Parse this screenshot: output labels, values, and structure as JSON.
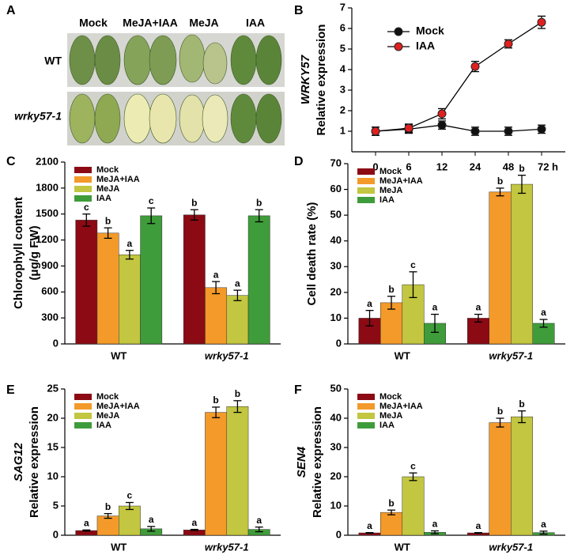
{
  "panel_a": {
    "letter": "A",
    "columns": [
      "Mock",
      "MeJA+IAA",
      "MeJA",
      "IAA"
    ],
    "rows": [
      "WT",
      "wrky57-1"
    ]
  },
  "chart_data": [
    {
      "type": "line",
      "letter": "B",
      "ylabel": [
        "WRKY57",
        "Relative expression"
      ],
      "ylabel_italic": [
        true,
        false
      ],
      "categories": [
        "0",
        "6",
        "12",
        "24",
        "48",
        "72 h"
      ],
      "ylim": [
        0,
        7
      ],
      "yticks": [
        1,
        2,
        3,
        4,
        5,
        6,
        7
      ],
      "series": [
        {
          "name": "Mock",
          "color": "#111111",
          "values": [
            1.0,
            1.1,
            1.3,
            1.0,
            1.0,
            1.1
          ],
          "errors": [
            0.2,
            0.2,
            0.2,
            0.2,
            0.2,
            0.2
          ]
        },
        {
          "name": "IAA",
          "color": "#e02020",
          "values": [
            1.0,
            1.15,
            1.85,
            4.15,
            5.25,
            6.3
          ],
          "errors": [
            0.2,
            0.2,
            0.25,
            0.25,
            0.2,
            0.3
          ]
        }
      ]
    },
    {
      "type": "bar",
      "letter": "C",
      "ylabel": [
        "Chlorophyll content",
        "(μg/g FW)"
      ],
      "ylabel_italic": [
        false,
        false
      ],
      "categories": [
        "WT",
        "wrky57-1"
      ],
      "ylim": [
        0,
        2100
      ],
      "yticks": [
        0,
        300,
        600,
        900,
        1200,
        1500,
        1800,
        2100
      ],
      "series": [
        {
          "name": "Mock",
          "color": "#8b0a14",
          "values": [
            1430,
            1490
          ],
          "errors": [
            70,
            60
          ],
          "letters": [
            "c",
            "b"
          ]
        },
        {
          "name": "MeJA+IAA",
          "color": "#f39a2a",
          "values": [
            1280,
            650
          ],
          "errors": [
            60,
            70
          ],
          "letters": [
            "b",
            "a"
          ]
        },
        {
          "name": "MeJA",
          "color": "#c2c640",
          "values": [
            1030,
            560
          ],
          "errors": [
            50,
            60
          ],
          "letters": [
            "a",
            "a"
          ]
        },
        {
          "name": "IAA",
          "color": "#3f9c3a",
          "values": [
            1480,
            1480
          ],
          "errors": [
            90,
            70
          ],
          "letters": [
            "c",
            "b"
          ]
        }
      ]
    },
    {
      "type": "bar",
      "letter": "D",
      "ylabel": [
        "Cell death rate (%)"
      ],
      "ylabel_italic": [
        false
      ],
      "categories": [
        "WT",
        "wrky57-1"
      ],
      "ylim": [
        0,
        70
      ],
      "yticks": [
        0,
        10,
        20,
        30,
        40,
        50,
        60,
        70
      ],
      "series": [
        {
          "name": "Mock",
          "color": "#8b0a14",
          "values": [
            10,
            10
          ],
          "errors": [
            3,
            1.5
          ],
          "letters": [
            "a",
            "a"
          ]
        },
        {
          "name": "MeJA+IAA",
          "color": "#f39a2a",
          "values": [
            16,
            59
          ],
          "errors": [
            2.5,
            1.5
          ],
          "letters": [
            "b",
            "b"
          ]
        },
        {
          "name": "MeJA",
          "color": "#c2c640",
          "values": [
            23,
            62
          ],
          "errors": [
            5,
            3.5
          ],
          "letters": [
            "c",
            "b"
          ]
        },
        {
          "name": "IAA",
          "color": "#3f9c3a",
          "values": [
            8,
            8
          ],
          "errors": [
            3.5,
            1.5
          ],
          "letters": [
            "a",
            "a"
          ]
        }
      ]
    },
    {
      "type": "bar",
      "letter": "E",
      "ylabel": [
        "SAG12",
        "Relative expression"
      ],
      "ylabel_italic": [
        true,
        false
      ],
      "categories": [
        "WT",
        "wrky57-1"
      ],
      "ylim": [
        0,
        25
      ],
      "yticks": [
        0,
        5,
        10,
        15,
        20,
        25
      ],
      "series": [
        {
          "name": "Mock",
          "color": "#8b0a14",
          "values": [
            0.8,
            0.9
          ],
          "errors": [
            0.1,
            0.1
          ],
          "letters": [
            "a",
            "a"
          ]
        },
        {
          "name": "MeJA+IAA",
          "color": "#f39a2a",
          "values": [
            3.3,
            21
          ],
          "errors": [
            0.4,
            0.9
          ],
          "letters": [
            "b",
            "b"
          ]
        },
        {
          "name": "MeJA",
          "color": "#c2c640",
          "values": [
            5,
            22
          ],
          "errors": [
            0.6,
            1.0
          ],
          "letters": [
            "c",
            "b"
          ]
        },
        {
          "name": "IAA",
          "color": "#3f9c3a",
          "values": [
            1.1,
            1.0
          ],
          "errors": [
            0.4,
            0.4
          ],
          "letters": [
            "a",
            "a"
          ]
        }
      ]
    },
    {
      "type": "bar",
      "letter": "F",
      "ylabel": [
        "SEN4",
        "Relative expression"
      ],
      "ylabel_italic": [
        true,
        false
      ],
      "categories": [
        "WT",
        "wrky57-1"
      ],
      "ylim": [
        0,
        50
      ],
      "yticks": [
        0,
        10,
        20,
        30,
        40,
        50
      ],
      "series": [
        {
          "name": "Mock",
          "color": "#8b0a14",
          "values": [
            0.8,
            0.8
          ],
          "errors": [
            0.1,
            0.1
          ],
          "letters": [
            "a",
            "a"
          ]
        },
        {
          "name": "MeJA+IAA",
          "color": "#f39a2a",
          "values": [
            7.8,
            38.5
          ],
          "errors": [
            0.8,
            1.5
          ],
          "letters": [
            "b",
            "b"
          ]
        },
        {
          "name": "MeJA",
          "color": "#c2c640",
          "values": [
            20,
            40.5
          ],
          "errors": [
            1.3,
            2.0
          ],
          "letters": [
            "c",
            "b"
          ]
        },
        {
          "name": "IAA",
          "color": "#3f9c3a",
          "values": [
            1.0,
            0.9
          ],
          "errors": [
            0.5,
            0.5
          ],
          "letters": [
            "a",
            "a"
          ]
        }
      ]
    }
  ]
}
